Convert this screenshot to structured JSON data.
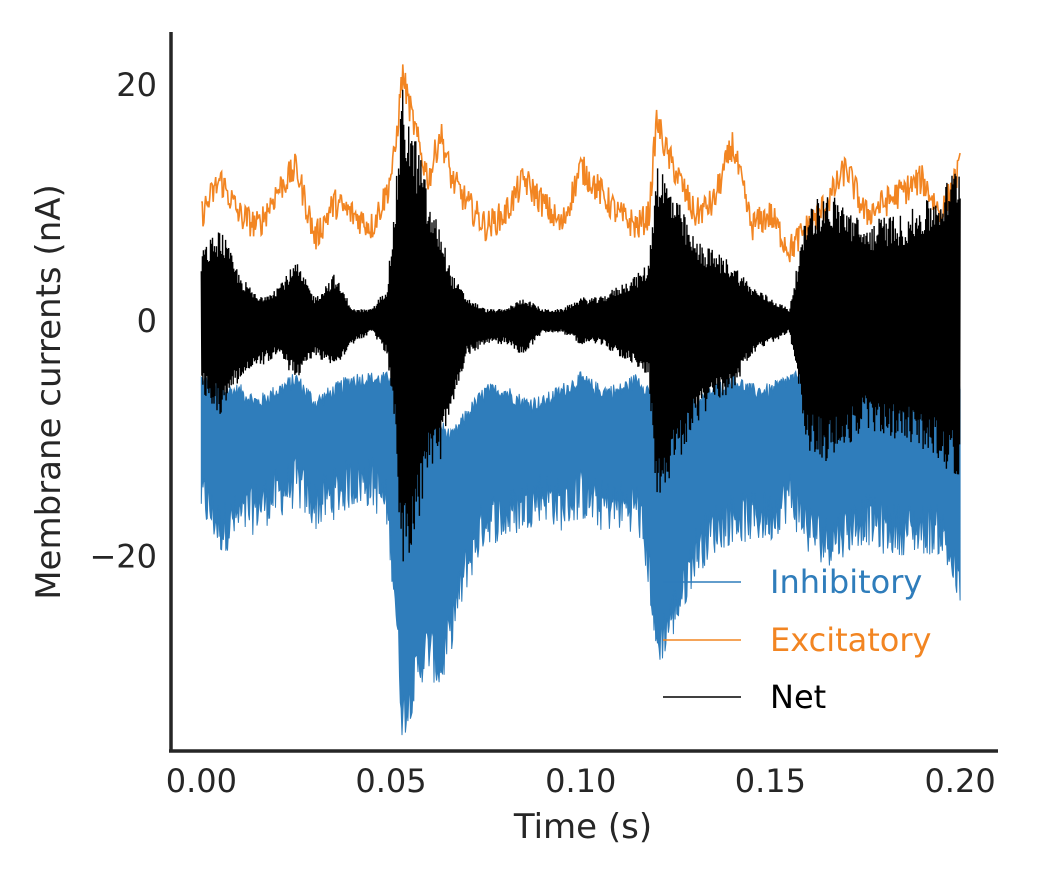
{
  "chart_data": {
    "type": "line",
    "title": "",
    "xlabel": "Time (s)",
    "ylabel": "Membrane currents (nA)",
    "xlim": [
      -0.008,
      0.21
    ],
    "ylim": [
      -36.5,
      24.5
    ],
    "x_ticks": [
      0.0,
      0.05,
      0.1,
      0.15,
      0.2
    ],
    "x_tick_labels": [
      "0.00",
      "0.05",
      "0.10",
      "0.15",
      "0.20"
    ],
    "y_ticks": [
      -20,
      0,
      20
    ],
    "y_tick_labels": [
      "−20",
      "0",
      "20"
    ],
    "grid": false,
    "legend_position": "lower-right",
    "series": [
      {
        "name": "Inhibitory",
        "color": "#2f7dbb",
        "x": [
          0.0,
          0.005,
          0.01,
          0.015,
          0.02,
          0.025,
          0.03,
          0.035,
          0.04,
          0.045,
          0.049,
          0.051,
          0.053,
          0.055,
          0.058,
          0.06,
          0.063,
          0.066,
          0.07,
          0.075,
          0.08,
          0.085,
          0.09,
          0.095,
          0.1,
          0.105,
          0.11,
          0.115,
          0.118,
          0.12,
          0.123,
          0.126,
          0.13,
          0.135,
          0.14,
          0.145,
          0.15,
          0.155,
          0.16,
          0.165,
          0.17,
          0.175,
          0.18,
          0.185,
          0.19,
          0.195,
          0.2
        ],
        "upper": [
          -5,
          -6,
          -6,
          -7,
          -6,
          -5,
          -7,
          -6,
          -5,
          -5,
          -5,
          -4,
          -6,
          -6,
          -7,
          -8,
          -9,
          -10,
          -8,
          -6,
          -6,
          -7,
          -7,
          -6,
          -5,
          -6,
          -6,
          -5,
          -6,
          -7,
          -7,
          -8,
          -7,
          -6,
          -5,
          -6,
          -6,
          -5,
          -5,
          -6,
          -7,
          -6,
          -6,
          -7,
          -7,
          -7,
          -6
        ],
        "lower": [
          -16,
          -19,
          -18,
          -17,
          -16,
          -15,
          -17,
          -16,
          -15,
          -15,
          -17,
          -24,
          -35,
          -33,
          -30,
          -29,
          -31,
          -27,
          -22,
          -18,
          -18,
          -17,
          -16,
          -17,
          -16,
          -17,
          -17,
          -17,
          -22,
          -29,
          -27,
          -25,
          -21,
          -19,
          -18,
          -18,
          -18,
          -16,
          -19,
          -20,
          -19,
          -18,
          -19,
          -19,
          -19,
          -19,
          -24
        ]
      },
      {
        "name": "Excitatory",
        "color": "#f28522",
        "x": [
          0.0,
          0.005,
          0.01,
          0.015,
          0.02,
          0.025,
          0.03,
          0.035,
          0.04,
          0.045,
          0.049,
          0.051,
          0.053,
          0.055,
          0.058,
          0.06,
          0.063,
          0.066,
          0.07,
          0.075,
          0.08,
          0.085,
          0.09,
          0.095,
          0.1,
          0.105,
          0.11,
          0.115,
          0.118,
          0.12,
          0.123,
          0.126,
          0.13,
          0.135,
          0.14,
          0.145,
          0.15,
          0.155,
          0.16,
          0.165,
          0.17,
          0.175,
          0.18,
          0.185,
          0.19,
          0.195,
          0.2
        ],
        "y": [
          9,
          12,
          9,
          8,
          11,
          13,
          7,
          10,
          9,
          8,
          11,
          14,
          21,
          18,
          14,
          12,
          16,
          12,
          10,
          8,
          9,
          12,
          10,
          8,
          13,
          11,
          9,
          8,
          9,
          17,
          14,
          12,
          9,
          10,
          15,
          8,
          9,
          6,
          8,
          10,
          13,
          9,
          10,
          11,
          12,
          9,
          13
        ]
      },
      {
        "name": "Net",
        "color": "#000000",
        "x": [
          0.0,
          0.005,
          0.01,
          0.015,
          0.02,
          0.025,
          0.03,
          0.035,
          0.04,
          0.045,
          0.049,
          0.051,
          0.053,
          0.055,
          0.058,
          0.06,
          0.063,
          0.066,
          0.07,
          0.075,
          0.08,
          0.085,
          0.09,
          0.095,
          0.1,
          0.105,
          0.11,
          0.115,
          0.118,
          0.12,
          0.123,
          0.126,
          0.13,
          0.135,
          0.14,
          0.145,
          0.15,
          0.155,
          0.16,
          0.165,
          0.17,
          0.175,
          0.18,
          0.185,
          0.19,
          0.195,
          0.2
        ],
        "upper": [
          6,
          8,
          4,
          2,
          3,
          5,
          2,
          4,
          1,
          1,
          3,
          10,
          20,
          17,
          14,
          10,
          8,
          4,
          2,
          1,
          1,
          2,
          1,
          1,
          2,
          2,
          3,
          4,
          5,
          14,
          12,
          10,
          7,
          6,
          5,
          3,
          2,
          1,
          10,
          11,
          10,
          8,
          9,
          9,
          10,
          11,
          14
        ],
        "lower": [
          -6,
          -8,
          -5,
          -4,
          -3,
          -5,
          -3,
          -4,
          -2,
          -1,
          -3,
          -9,
          -22,
          -20,
          -16,
          -13,
          -12,
          -8,
          -3,
          -2,
          -2,
          -3,
          -1,
          -1,
          -2,
          -2,
          -3,
          -4,
          -5,
          -15,
          -14,
          -12,
          -9,
          -7,
          -6,
          -3,
          -2,
          -1,
          -11,
          -12,
          -11,
          -9,
          -10,
          -10,
          -11,
          -12,
          -14
        ]
      }
    ]
  }
}
